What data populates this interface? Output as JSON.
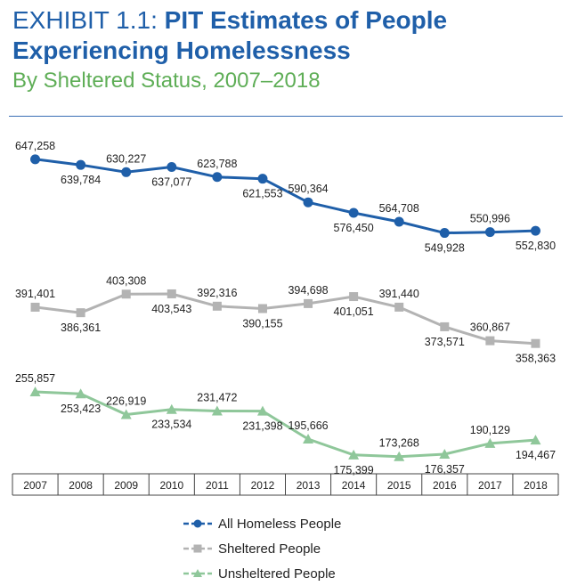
{
  "header": {
    "exhibit_label": "EXHIBIT 1.1:",
    "title_line1": "PIT Estimates of People",
    "title_line2": "Experiencing Homelessness",
    "subtitle": "By Sheltered Status, 2007–2018"
  },
  "colors": {
    "title_blue": "#1f5fa9",
    "subtitle_green": "#5fae57",
    "all_homeless": "#1f5fa9",
    "sheltered": "#b3b3b3",
    "unsheltered": "#8fc79a"
  },
  "chart_data": {
    "type": "line",
    "title": "PIT Estimates of People Experiencing Homelessness",
    "subtitle": "By Sheltered Status, 2007–2018",
    "categories": [
      "2007",
      "2008",
      "2009",
      "2010",
      "2011",
      "2012",
      "2013",
      "2014",
      "2015",
      "2016",
      "2017",
      "2018"
    ],
    "series": [
      {
        "name": "All Homeless People",
        "marker": "circle",
        "values": [
          647258,
          639784,
          630227,
          637077,
          623788,
          621553,
          590364,
          576450,
          564708,
          549928,
          550996,
          552830
        ],
        "labels": [
          "647,258",
          "639,784",
          "630,227",
          "637,077",
          "623,788",
          "621,553",
          "590,364",
          "576,450",
          "564,708",
          "549,928",
          "550,996",
          "552,830"
        ]
      },
      {
        "name": "Sheltered People",
        "marker": "square",
        "values": [
          391401,
          386361,
          403308,
          403543,
          392316,
          390155,
          394698,
          401051,
          391440,
          373571,
          360867,
          358363
        ],
        "labels": [
          "391,401",
          "386,361",
          "403,308",
          "403,543",
          "392,316",
          "390,155",
          "394,698",
          "401,051",
          "391,440",
          "373,571",
          "360,867",
          "358,363"
        ]
      },
      {
        "name": "Unsheltered People",
        "marker": "triangle",
        "values": [
          255857,
          253423,
          226919,
          233534,
          231472,
          231398,
          195666,
          175399,
          173268,
          176357,
          190129,
          194467
        ],
        "labels": [
          "255,857",
          "253,423",
          "226,919",
          "233,534",
          "231,472",
          "231,398",
          "195,666",
          "175,399",
          "173,268",
          "176,357",
          "190,129",
          "194,467"
        ]
      }
    ],
    "xlabel": "",
    "ylabel": "",
    "legend": "bottom-center",
    "grid": false
  }
}
